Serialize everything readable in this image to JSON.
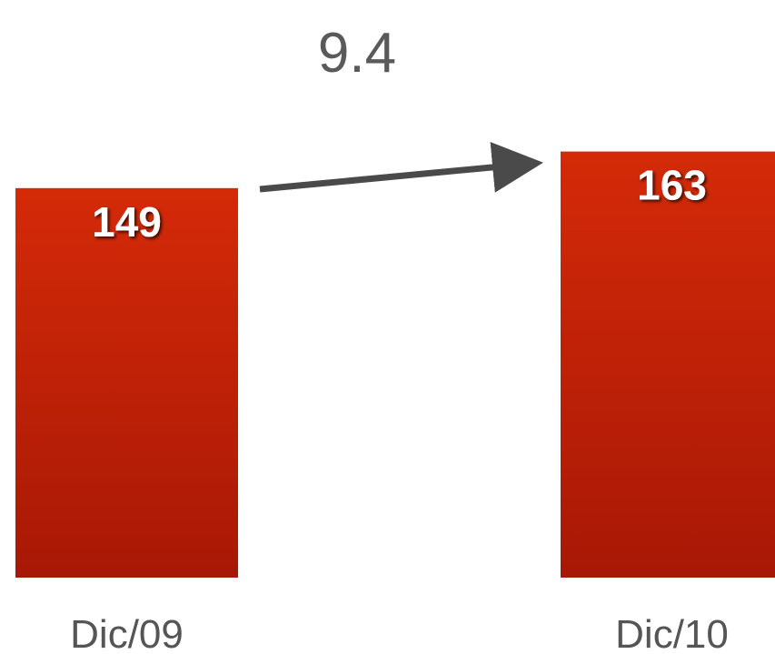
{
  "chart_data": {
    "type": "bar",
    "categories": [
      "Dic/09",
      "Dic/10"
    ],
    "values": [
      149,
      163
    ],
    "data_labels": [
      "149",
      "163"
    ],
    "annotation": "9.4",
    "title": "",
    "xlabel": "",
    "ylabel": "",
    "grid": false,
    "legend": "none"
  },
  "colors": {
    "bar_top": "#d42a08",
    "bar_bottom": "#a81806",
    "arrow": "#4a4a4a",
    "annotation_text": "#5a5a5a",
    "category_text": "#555555",
    "data_label_text": "#ffffff"
  }
}
